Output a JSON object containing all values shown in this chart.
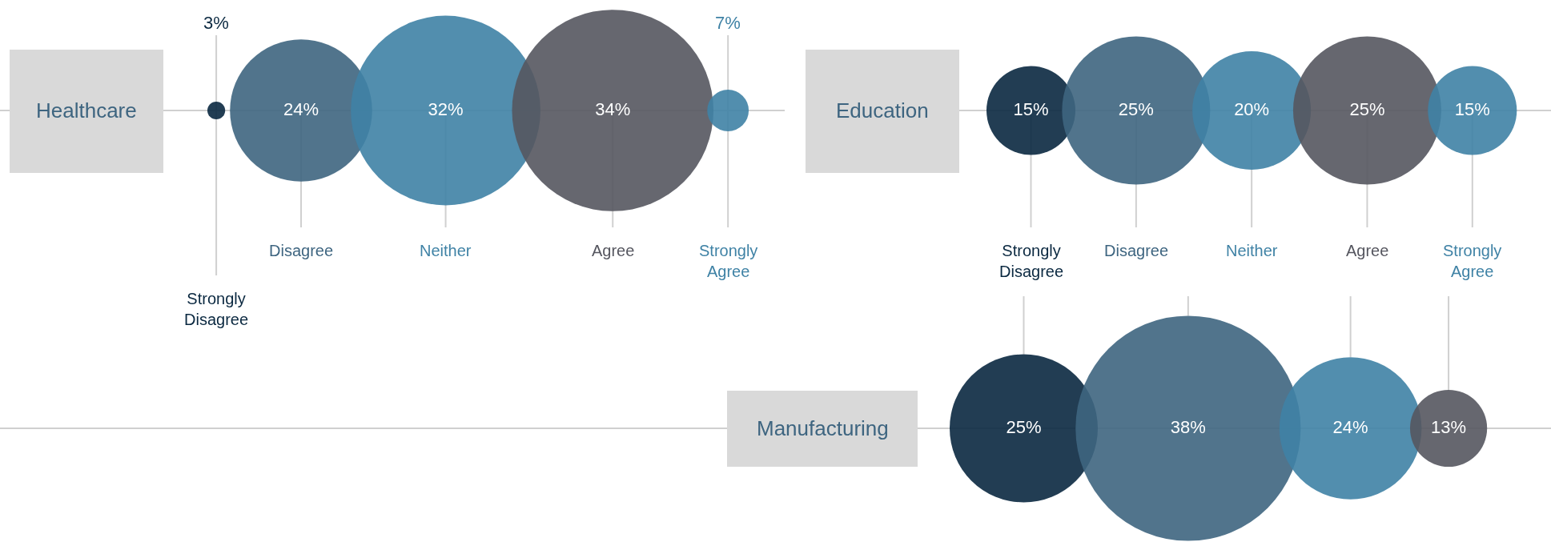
{
  "chart_data": [
    {
      "type": "other",
      "title": "Healthcare",
      "categories": [
        "Strongly Disagree",
        "Disagree",
        "Neither",
        "Agree",
        "Strongly Agree"
      ],
      "values": [
        3,
        24,
        32,
        34,
        7
      ],
      "value_labels": [
        "3%",
        "24%",
        "32%",
        "34%",
        "7%"
      ],
      "colors": [
        "#0a2840",
        "#3e6580",
        "#3f82a5",
        "#55565f",
        "#3f82a5"
      ]
    },
    {
      "type": "other",
      "title": "Education",
      "categories": [
        "Strongly Disagree",
        "Disagree",
        "Neither",
        "Agree",
        "Strongly Agree"
      ],
      "values": [
        15,
        25,
        20,
        25,
        15
      ],
      "value_labels": [
        "15%",
        "25%",
        "20%",
        "25%",
        "15%"
      ],
      "colors": [
        "#0a2840",
        "#3e6580",
        "#3f82a5",
        "#55565f",
        "#3f82a5"
      ]
    },
    {
      "type": "other",
      "title": "Manufacturing",
      "categories": [
        null,
        null,
        null,
        null
      ],
      "values": [
        25,
        38,
        24,
        13
      ],
      "value_labels": [
        "25%",
        "38%",
        "24%",
        "13%"
      ],
      "colors": [
        "#0a2840",
        "#3e6580",
        "#3f82a5",
        "#55565f"
      ]
    }
  ]
}
